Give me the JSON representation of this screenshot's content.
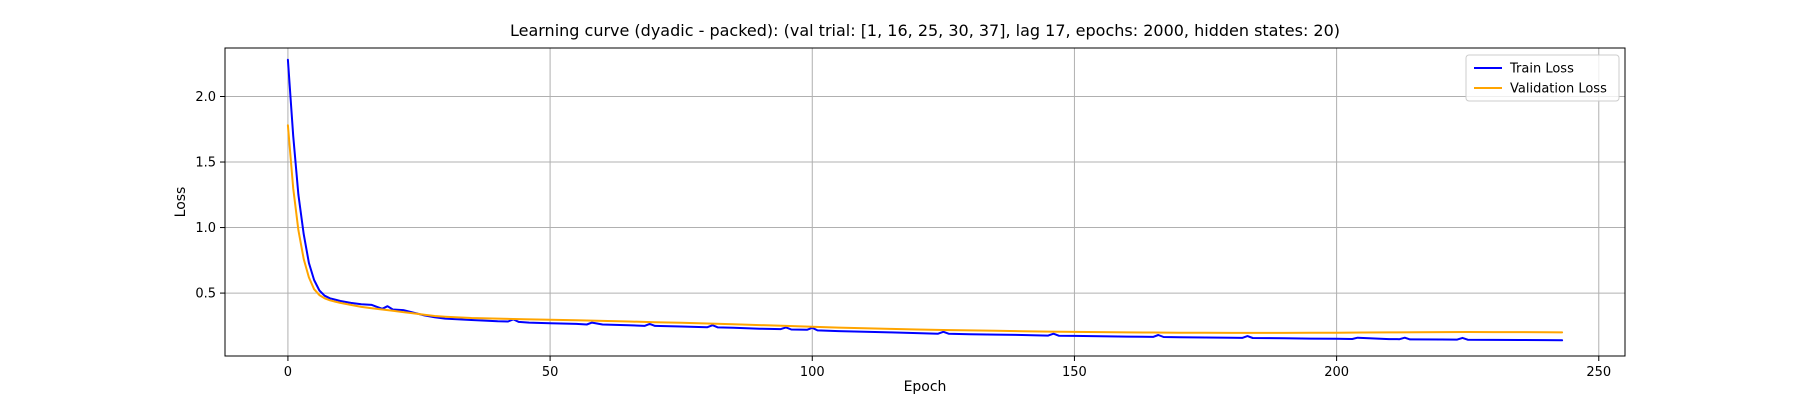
{
  "chart_data": {
    "type": "line",
    "title": "Learning curve (dyadic - packed): (val trial: [1, 16, 25, 30, 37], lag 17, epochs: 2000, hidden states: 20)",
    "xlabel": "Epoch",
    "ylabel": "Loss",
    "xlim": [
      -12,
      255
    ],
    "ylim": [
      0.02,
      2.37
    ],
    "xticks": [
      0,
      50,
      100,
      150,
      200,
      250
    ],
    "yticks": [
      0.5,
      1.0,
      1.5,
      2.0
    ],
    "xtick_labels": [
      "0",
      "50",
      "100",
      "150",
      "200",
      "250"
    ],
    "ytick_labels": [
      "0.5",
      "1.0",
      "1.5",
      "2.0"
    ],
    "grid": true,
    "legend_position": "top-right",
    "series": [
      {
        "name": "Train Loss",
        "color": "#0000ff",
        "x": [
          0,
          1,
          2,
          3,
          4,
          5,
          6,
          7,
          8,
          9,
          10,
          12,
          14,
          16,
          17,
          18,
          19,
          20,
          22,
          24,
          26,
          28,
          30,
          35,
          40,
          42,
          43,
          44,
          46,
          50,
          55,
          57,
          58,
          60,
          65,
          68,
          69,
          70,
          75,
          80,
          81,
          82,
          85,
          90,
          94,
          95,
          96,
          99,
          100,
          101,
          105,
          110,
          115,
          120,
          124,
          125,
          126,
          130,
          135,
          140,
          145,
          146,
          147,
          150,
          155,
          160,
          165,
          166,
          167,
          170,
          175,
          180,
          182,
          183,
          184,
          190,
          195,
          200,
          203,
          204,
          210,
          212,
          213,
          214,
          220,
          223,
          224,
          225,
          230,
          235,
          240,
          243
        ],
        "y": [
          2.28,
          1.7,
          1.25,
          0.95,
          0.73,
          0.6,
          0.52,
          0.48,
          0.46,
          0.45,
          0.44,
          0.425,
          0.415,
          0.41,
          0.395,
          0.38,
          0.4,
          0.375,
          0.37,
          0.35,
          0.33,
          0.315,
          0.305,
          0.295,
          0.285,
          0.283,
          0.3,
          0.28,
          0.275,
          0.27,
          0.265,
          0.26,
          0.275,
          0.26,
          0.255,
          0.25,
          0.265,
          0.25,
          0.245,
          0.24,
          0.255,
          0.238,
          0.235,
          0.228,
          0.225,
          0.238,
          0.222,
          0.22,
          0.235,
          0.215,
          0.21,
          0.205,
          0.2,
          0.195,
          0.19,
          0.205,
          0.19,
          0.186,
          0.183,
          0.18,
          0.176,
          0.19,
          0.175,
          0.173,
          0.17,
          0.168,
          0.166,
          0.18,
          0.165,
          0.163,
          0.161,
          0.16,
          0.158,
          0.172,
          0.157,
          0.155,
          0.153,
          0.152,
          0.15,
          0.16,
          0.149,
          0.148,
          0.16,
          0.147,
          0.146,
          0.145,
          0.158,
          0.144,
          0.143,
          0.142,
          0.141,
          0.14
        ]
      },
      {
        "name": "Validation Loss",
        "color": "#ffa500",
        "x": [
          0,
          1,
          2,
          3,
          4,
          5,
          6,
          7,
          8,
          9,
          10,
          12,
          14,
          16,
          18,
          20,
          22,
          24,
          26,
          28,
          30,
          35,
          40,
          45,
          50,
          55,
          60,
          65,
          70,
          75,
          80,
          85,
          90,
          95,
          100,
          105,
          110,
          115,
          120,
          125,
          130,
          135,
          140,
          145,
          150,
          155,
          160,
          165,
          170,
          175,
          180,
          185,
          190,
          195,
          200,
          205,
          210,
          215,
          220,
          225,
          230,
          235,
          240,
          243
        ],
        "y": [
          1.78,
          1.3,
          0.98,
          0.76,
          0.62,
          0.53,
          0.485,
          0.46,
          0.445,
          0.435,
          0.425,
          0.41,
          0.395,
          0.385,
          0.375,
          0.365,
          0.355,
          0.345,
          0.335,
          0.325,
          0.32,
          0.31,
          0.305,
          0.3,
          0.297,
          0.293,
          0.288,
          0.283,
          0.278,
          0.273,
          0.268,
          0.262,
          0.256,
          0.25,
          0.243,
          0.237,
          0.232,
          0.227,
          0.222,
          0.218,
          0.215,
          0.212,
          0.209,
          0.206,
          0.204,
          0.202,
          0.2,
          0.199,
          0.198,
          0.197,
          0.196,
          0.196,
          0.196,
          0.197,
          0.198,
          0.199,
          0.2,
          0.201,
          0.202,
          0.203,
          0.202,
          0.202,
          0.201,
          0.2
        ]
      }
    ]
  }
}
